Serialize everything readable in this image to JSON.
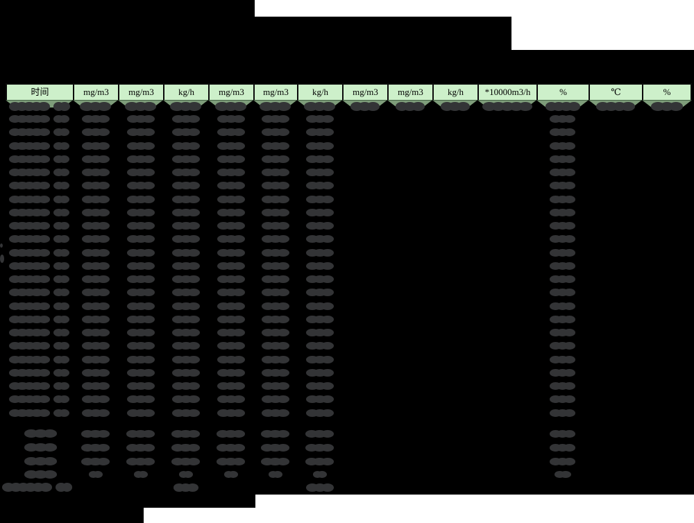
{
  "page": {
    "kind": "redacted pollutant emission monitoring report table",
    "title_rows_redacted": true,
    "background_note": "black redaction bars over white page"
  },
  "colors": {
    "bg": "#000000",
    "white": "#ffffff",
    "hdr": "#cdf0ca",
    "hdr_border": "#0b0b0b",
    "hdr_rule": "#456345",
    "hdr_text": "#000000",
    "trap": "#7e9d7a",
    "blob": "#333436"
  },
  "table": {
    "unit_header_row": [
      {
        "unit": "时间"
      },
      {
        "unit": "mg/m3"
      },
      {
        "unit": "mg/m3"
      },
      {
        "unit": "kg/h"
      },
      {
        "unit": "mg/m3"
      },
      {
        "unit": "mg/m3"
      },
      {
        "unit": "kg/h"
      },
      {
        "unit": "mg/m3"
      },
      {
        "unit": "mg/m3"
      },
      {
        "unit": "kg/h"
      },
      {
        "unit": "*10000m3/h"
      },
      {
        "unit": "%"
      },
      {
        "unit": "℃"
      },
      {
        "unit": "%"
      }
    ],
    "second_header_row": {
      "redacted": true,
      "columns_with_redacted_names": [
        0,
        1,
        2,
        3,
        4,
        5,
        6,
        7,
        8,
        9,
        10,
        11,
        12,
        13
      ]
    },
    "data_rows": {
      "count": 23,
      "redacted": true,
      "datetime_column": 0,
      "columns_with_values": [
        1,
        2,
        3,
        4,
        5,
        6,
        11
      ]
    },
    "summary_rows": {
      "count": 4,
      "redacted": true,
      "label_column": 0,
      "columns_with_values": [
        1,
        2,
        3,
        4,
        5,
        6,
        11
      ],
      "last_row_has_small_marks": true
    },
    "footer_row": {
      "redacted": true,
      "long_label_at_left": true,
      "columns_with_values": [
        3,
        6
      ]
    }
  }
}
